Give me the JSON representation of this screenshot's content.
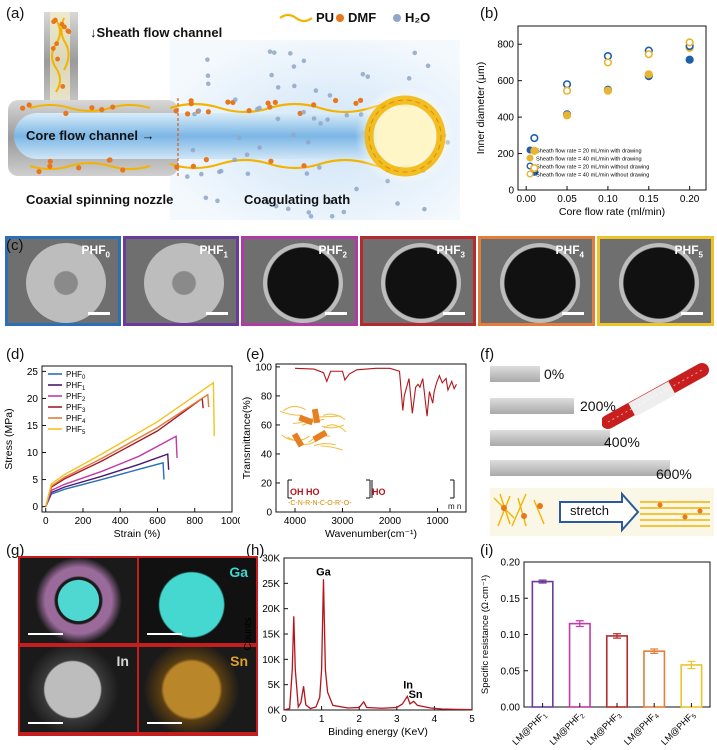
{
  "panels": {
    "a": "(a)",
    "b": "(b)",
    "c": "(c)",
    "d": "(d)",
    "e": "(e)",
    "f": "(f)",
    "g": "(g)",
    "h": "(h)",
    "i": "(i)"
  },
  "panel_a": {
    "sheath_label": "↓Sheath flow channel",
    "core_label": "Core flow channel →",
    "nozzle_label": "Coaxial spinning nozzle",
    "bath_label": "Coagulating bath",
    "legend": {
      "pu": "PU",
      "dmf": "DMF",
      "h2o": "H₂O"
    },
    "colors": {
      "pu": "#f2b400",
      "dmf": "#e8761c",
      "h2o": "#8fa6c8"
    }
  },
  "panel_c": {
    "tiles": [
      {
        "name": "PHF",
        "sub": "0",
        "color": "#2a6fb8"
      },
      {
        "name": "PHF",
        "sub": "1",
        "color": "#6a3b9a"
      },
      {
        "name": "PHF",
        "sub": "2",
        "color": "#b03aa6"
      },
      {
        "name": "PHF",
        "sub": "3",
        "color": "#b52b2b"
      },
      {
        "name": "PHF",
        "sub": "4",
        "color": "#e07e3a"
      },
      {
        "name": "PHF",
        "sub": "5",
        "color": "#ecc42a"
      }
    ]
  },
  "panel_e": {
    "polymer_label_left": "OH  HO",
    "polymer_label_right": "HO",
    "polymer_subscript": "m n",
    "polymer_chain": "-C-N-R-N-C-O-R'-O-"
  },
  "panel_f": {
    "pct": [
      "0%",
      "200%",
      "400%",
      "600%"
    ],
    "stretch": "stretch"
  },
  "panel_g": {
    "elements": [
      {
        "name": "Ga",
        "color": "#3fd6d0"
      },
      {
        "name": "In",
        "color": "#d8d8d8"
      },
      {
        "name": "Sn",
        "color": "#e0a12a"
      }
    ]
  },
  "chart_data": [
    {
      "id": "b",
      "type": "scatter",
      "xlabel": "Core flow rate (ml/min)",
      "ylabel": "Inner diameter (μm)",
      "xlim": [
        -0.01,
        0.22
      ],
      "ylim": [
        0,
        900
      ],
      "xticks": [
        0.0,
        0.05,
        0.1,
        0.15,
        0.2
      ],
      "xticklabels": [
        "0.00",
        "0.05",
        "0.10",
        "0.15",
        "0.20"
      ],
      "yticks": [
        0,
        200,
        400,
        600,
        800
      ],
      "x": [
        0.01,
        0.05,
        0.1,
        0.15,
        0.2
      ],
      "series": [
        {
          "name": "Sheath flow rate = 20 mL/min with drawing",
          "color": "#1f5fa8",
          "filled": true,
          "values": [
            100,
            415,
            550,
            625,
            715
          ]
        },
        {
          "name": "Sheath flow rate = 40 mL/min with drawing",
          "color": "#e9b431",
          "filled": true,
          "values": [
            215,
            410,
            545,
            635,
            780
          ]
        },
        {
          "name": "Sheath flow rate = 20 mL/min without drawing",
          "color": "#1f5fa8",
          "filled": false,
          "values": [
            285,
            580,
            735,
            765,
            790
          ]
        },
        {
          "name": "Sheath flow rate = 40 mL/min without drawing",
          "color": "#e9b431",
          "filled": false,
          "values": [
            120,
            545,
            700,
            745,
            810
          ]
        }
      ],
      "legend": "bottom-right"
    },
    {
      "id": "d",
      "type": "line",
      "xlabel": "Strain (%)",
      "ylabel": "Stress (MPa)",
      "xlim": [
        -20,
        1000
      ],
      "ylim": [
        -1,
        26
      ],
      "xticks": [
        0,
        200,
        400,
        600,
        800,
        1000
      ],
      "yticks": [
        0,
        5,
        10,
        15,
        20,
        25
      ],
      "series": [
        {
          "name": "PHF",
          "sub": "0",
          "color": "#2a6fb8",
          "points": [
            [
              0,
              0
            ],
            [
              30,
              2.3
            ],
            [
              100,
              3.2
            ],
            [
              300,
              5.0
            ],
            [
              500,
              6.9
            ],
            [
              630,
              8.1
            ],
            [
              635,
              5.0
            ]
          ]
        },
        {
          "name": "PHF",
          "sub": "1",
          "color": "#4b1a6e",
          "points": [
            [
              0,
              0
            ],
            [
              30,
              2.6
            ],
            [
              100,
              3.6
            ],
            [
              300,
              5.6
            ],
            [
              500,
              7.8
            ],
            [
              655,
              9.7
            ],
            [
              660,
              6.8
            ]
          ]
        },
        {
          "name": "PHF",
          "sub": "2",
          "color": "#c23aa6",
          "points": [
            [
              0,
              0
            ],
            [
              30,
              3.0
            ],
            [
              100,
              4.1
            ],
            [
              300,
              6.5
            ],
            [
              500,
              9.3
            ],
            [
              700,
              13.0
            ],
            [
              705,
              9.0
            ]
          ]
        },
        {
          "name": "PHF",
          "sub": "3",
          "color": "#a51c2a",
          "points": [
            [
              0,
              0
            ],
            [
              30,
              3.6
            ],
            [
              100,
              5.1
            ],
            [
              300,
              8.4
            ],
            [
              600,
              14.0
            ],
            [
              840,
              20.0
            ],
            [
              845,
              18.2
            ]
          ]
        },
        {
          "name": "PHF",
          "sub": "4",
          "color": "#e37b3a",
          "points": [
            [
              0,
              0
            ],
            [
              30,
              3.8
            ],
            [
              100,
              5.4
            ],
            [
              300,
              8.9
            ],
            [
              600,
              14.6
            ],
            [
              870,
              20.7
            ],
            [
              875,
              18.4
            ]
          ]
        },
        {
          "name": "PHF",
          "sub": "5",
          "color": "#f4c21f",
          "points": [
            [
              0,
              0
            ],
            [
              30,
              4.2
            ],
            [
              100,
              5.9
            ],
            [
              300,
              9.7
            ],
            [
              600,
              15.7
            ],
            [
              900,
              22.9
            ],
            [
              905,
              13.0
            ]
          ]
        }
      ],
      "legend": "top-left"
    },
    {
      "id": "e",
      "type": "line",
      "xlabel": "Wavenumber(cm⁻¹)",
      "ylabel": "Transmittance(%)",
      "xlim": [
        4400,
        400
      ],
      "ylim": [
        0,
        102
      ],
      "xticks": [
        4000,
        3000,
        2000,
        1000
      ],
      "yticks": [
        0,
        20,
        40,
        60,
        80,
        100
      ],
      "series": [
        {
          "name": "",
          "color": "#b5141c",
          "points": [
            [
              4000,
              99
            ],
            [
              3600,
              98.5
            ],
            [
              3400,
              96
            ],
            [
              3330,
              90
            ],
            [
              3250,
              97
            ],
            [
              3000,
              97
            ],
            [
              2950,
              91
            ],
            [
              2860,
              95
            ],
            [
              2700,
              98
            ],
            [
              2300,
              99
            ],
            [
              2000,
              99
            ],
            [
              1800,
              97
            ],
            [
              1730,
              70
            ],
            [
              1700,
              80
            ],
            [
              1600,
              92
            ],
            [
              1530,
              68
            ],
            [
              1460,
              86
            ],
            [
              1410,
              88
            ],
            [
              1370,
              86
            ],
            [
              1310,
              92
            ],
            [
              1220,
              66
            ],
            [
              1170,
              83
            ],
            [
              1100,
              75
            ],
            [
              1070,
              83
            ],
            [
              1020,
              89
            ],
            [
              960,
              94
            ],
            [
              900,
              89
            ],
            [
              820,
              92
            ],
            [
              780,
              84
            ],
            [
              700,
              90
            ],
            [
              650,
              85
            ],
            [
              600,
              88
            ]
          ]
        }
      ]
    },
    {
      "id": "h",
      "type": "line",
      "xlabel": "Binding energy (KeV)",
      "ylabel": "Counts",
      "xlim": [
        0,
        5
      ],
      "ylim": [
        0,
        30000
      ],
      "xticks": [
        0,
        1,
        2,
        3,
        4,
        5
      ],
      "yticks": [
        0,
        5000,
        10000,
        15000,
        20000,
        25000,
        30000
      ],
      "yticklabels": [
        "0K",
        "5K",
        "10K",
        "15K",
        "20K",
        "25K",
        "30K"
      ],
      "annotations": [
        {
          "text": "Ga",
          "x": 1.05,
          "y": 26500
        },
        {
          "text": "In",
          "x": 3.3,
          "y": 4200
        },
        {
          "text": "Sn",
          "x": 3.5,
          "y": 2400
        }
      ],
      "series": [
        {
          "name": "",
          "color": "#b5141c",
          "points": [
            [
              0,
              0
            ],
            [
              0.15,
              300
            ],
            [
              0.22,
              8000
            ],
            [
              0.26,
              18500
            ],
            [
              0.3,
              8000
            ],
            [
              0.38,
              600
            ],
            [
              0.45,
              1500
            ],
            [
              0.52,
              4700
            ],
            [
              0.58,
              1000
            ],
            [
              0.7,
              300
            ],
            [
              0.85,
              600
            ],
            [
              0.95,
              2500
            ],
            [
              1.0,
              8000
            ],
            [
              1.05,
              25800
            ],
            [
              1.1,
              8000
            ],
            [
              1.16,
              3500
            ],
            [
              1.3,
              900
            ],
            [
              1.7,
              400
            ],
            [
              2.0,
              500
            ],
            [
              2.12,
              1600
            ],
            [
              2.2,
              500
            ],
            [
              2.6,
              350
            ],
            [
              3.0,
              500
            ],
            [
              3.15,
              1200
            ],
            [
              3.28,
              2700
            ],
            [
              3.35,
              1200
            ],
            [
              3.45,
              1700
            ],
            [
              3.55,
              900
            ],
            [
              3.7,
              700
            ],
            [
              3.9,
              400
            ],
            [
              4.2,
              200
            ],
            [
              4.6,
              120
            ],
            [
              5.0,
              80
            ]
          ]
        }
      ]
    },
    {
      "id": "i",
      "type": "bar",
      "ylabel": "Specific resistance (Ω·cm⁻¹)",
      "ylim": [
        0,
        0.2
      ],
      "yticks": [
        0,
        0.05,
        0.1,
        0.15,
        0.2
      ],
      "yticklabels": [
        "0.00",
        "0.05",
        "0.10",
        "0.15",
        "0.20"
      ],
      "categories": [
        {
          "name": "LM@PHF",
          "sub": "1"
        },
        {
          "name": "LM@PHF",
          "sub": "2"
        },
        {
          "name": "LM@PHF",
          "sub": "3"
        },
        {
          "name": "LM@PHF",
          "sub": "4"
        },
        {
          "name": "LM@PHF",
          "sub": "5"
        }
      ],
      "values": [
        0.173,
        0.115,
        0.098,
        0.077,
        0.058
      ],
      "errors": [
        0.002,
        0.004,
        0.003,
        0.003,
        0.005
      ],
      "colors": [
        "#6a3b9a",
        "#c23aa6",
        "#b52b2b",
        "#e07e3a",
        "#ecc42a"
      ]
    }
  ]
}
